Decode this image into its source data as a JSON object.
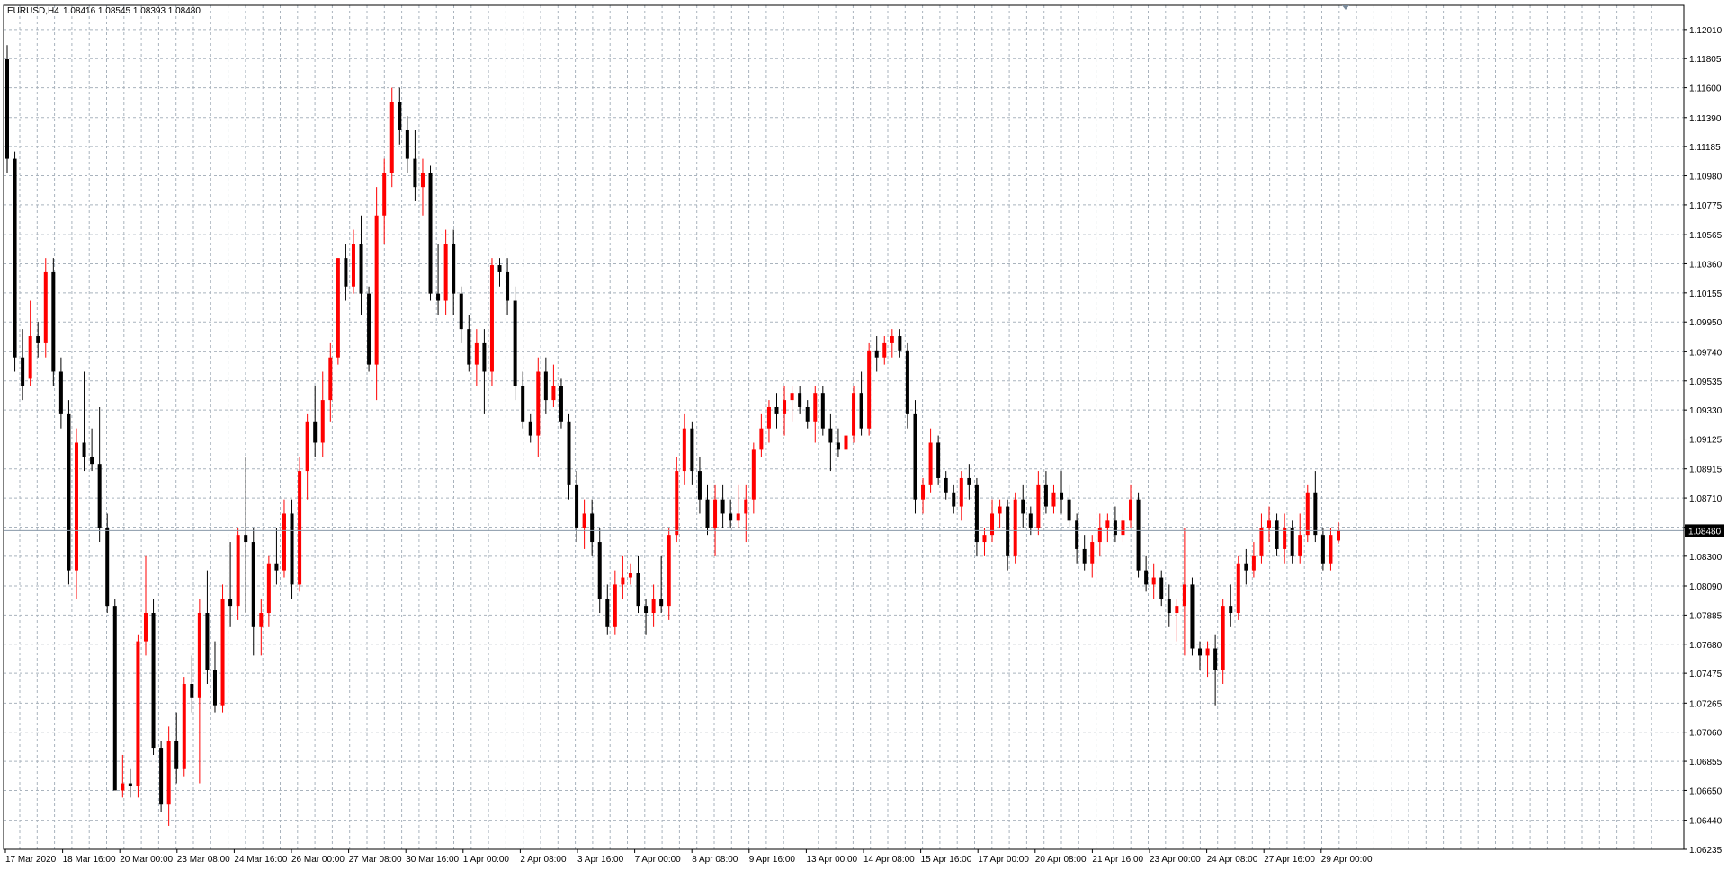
{
  "window": {
    "symbol_info": "EURUSD,H4",
    "ohlc": "1.08416 1.08545 1.08393 1.08480"
  },
  "current_price": {
    "label": "1.08480",
    "value": 1.0848
  },
  "colors": {
    "bull": "#ff0000",
    "bear": "#000000",
    "grid": "#a9b3bd",
    "price_label_bg": "#000000",
    "price_label_fg": "#ffffff",
    "doji": "#00aa00"
  },
  "chart_data": {
    "type": "candlestick",
    "title": "EURUSD,H4",
    "ylim": [
      1.06235,
      1.1218
    ],
    "y_ticks": [
      "1.12010",
      "1.11805",
      "1.11600",
      "1.11390",
      "1.11185",
      "1.10980",
      "1.10775",
      "1.10565",
      "1.10360",
      "1.10155",
      "1.09950",
      "1.09740",
      "1.09535",
      "1.09330",
      "1.09125",
      "1.08915",
      "1.08710",
      "1.08505",
      "1.08300",
      "1.08090",
      "1.07885",
      "1.07680",
      "1.07475",
      "1.07265",
      "1.07060",
      "1.06855",
      "1.06650",
      "1.06440",
      "1.06235"
    ],
    "x_ticks": [
      "17 Mar 2020",
      "18 Mar 16:00",
      "20 Mar 00:00",
      "23 Mar 08:00",
      "24 Mar 16:00",
      "26 Mar 00:00",
      "27 Mar 08:00",
      "30 Mar 16:00",
      "1 Apr 00:00",
      "2 Apr 08:00",
      "3 Apr 16:00",
      "7 Apr 00:00",
      "8 Apr 08:00",
      "9 Apr 16:00",
      "13 Apr 00:00",
      "14 Apr 08:00",
      "15 Apr 16:00",
      "17 Apr 00:00",
      "20 Apr 08:00",
      "21 Apr 16:00",
      "23 Apr 00:00",
      "24 Apr 08:00",
      "27 Apr 16:00",
      "29 Apr 00:00"
    ],
    "grid": true,
    "candles": [
      [
        1.118,
        1.119,
        1.11,
        1.111
      ],
      [
        1.111,
        1.1115,
        1.096,
        1.097
      ],
      [
        1.097,
        1.099,
        1.094,
        1.095
      ],
      [
        1.0955,
        1.101,
        1.095,
        1.0985
      ],
      [
        1.0985,
        1.0995,
        1.097,
        1.098
      ],
      [
        1.098,
        1.104,
        1.097,
        1.103
      ],
      [
        1.103,
        1.104,
        1.095,
        1.096
      ],
      [
        1.096,
        1.097,
        1.092,
        1.093
      ],
      [
        1.093,
        1.094,
        1.081,
        1.082
      ],
      [
        1.082,
        1.092,
        1.08,
        1.091
      ],
      [
        1.091,
        1.096,
        1.089,
        1.09
      ],
      [
        1.09,
        1.092,
        1.089,
        1.0895
      ],
      [
        1.0895,
        1.0935,
        1.084,
        1.085
      ],
      [
        1.085,
        1.086,
        1.079,
        1.0795
      ],
      [
        1.0795,
        1.08,
        1.067,
        1.0665
      ],
      [
        1.0665,
        1.069,
        1.066,
        1.067
      ],
      [
        1.067,
        1.068,
        1.066,
        1.0668
      ],
      [
        1.0668,
        1.0775,
        1.066,
        1.077
      ],
      [
        1.077,
        1.083,
        1.076,
        1.079
      ],
      [
        1.079,
        1.08,
        1.069,
        1.0695
      ],
      [
        1.0695,
        1.07,
        1.065,
        1.0655
      ],
      [
        1.0655,
        1.071,
        1.064,
        1.07
      ],
      [
        1.07,
        1.072,
        1.067,
        1.068
      ],
      [
        1.068,
        1.0745,
        1.0675,
        1.074
      ],
      [
        1.074,
        1.076,
        1.072,
        1.073
      ],
      [
        1.073,
        1.08,
        1.067,
        1.079
      ],
      [
        1.079,
        1.082,
        1.074,
        1.075
      ],
      [
        1.075,
        1.077,
        1.072,
        1.0725
      ],
      [
        1.0725,
        1.081,
        1.072,
        1.08
      ],
      [
        1.08,
        1.084,
        1.078,
        1.0795
      ],
      [
        1.0795,
        1.085,
        1.0785,
        1.0845
      ],
      [
        1.0845,
        1.09,
        1.079,
        1.084
      ],
      [
        1.084,
        1.085,
        1.076,
        1.078
      ],
      [
        1.078,
        1.08,
        1.076,
        1.079
      ],
      [
        1.079,
        1.083,
        1.078,
        1.0825
      ],
      [
        1.0825,
        1.085,
        1.081,
        1.082
      ],
      [
        1.082,
        1.087,
        1.0815,
        1.086
      ],
      [
        1.086,
        1.087,
        1.08,
        1.081
      ],
      [
        1.081,
        1.09,
        1.0805,
        1.089
      ],
      [
        1.089,
        1.093,
        1.087,
        1.0925
      ],
      [
        1.0925,
        1.095,
        1.09,
        1.091
      ],
      [
        1.091,
        1.096,
        1.09,
        1.094
      ],
      [
        1.094,
        1.098,
        1.0925,
        1.097
      ],
      [
        1.097,
        1.104,
        1.0965,
        1.104
      ],
      [
        1.104,
        1.105,
        1.101,
        1.102
      ],
      [
        1.102,
        1.106,
        1.1015,
        1.105
      ],
      [
        1.105,
        1.107,
        1.1,
        1.1015
      ],
      [
        1.1015,
        1.102,
        1.096,
        1.0965
      ],
      [
        1.0965,
        1.109,
        1.094,
        1.107
      ],
      [
        1.107,
        1.111,
        1.105,
        1.11
      ],
      [
        1.11,
        1.116,
        1.109,
        1.115
      ],
      [
        1.115,
        1.116,
        1.112,
        1.113
      ],
      [
        1.113,
        1.114,
        1.11,
        1.111
      ],
      [
        1.111,
        1.113,
        1.108,
        1.109
      ],
      [
        1.109,
        1.111,
        1.107,
        1.11
      ],
      [
        1.11,
        1.1105,
        1.101,
        1.1015
      ],
      [
        1.1015,
        1.105,
        1.1,
        1.101
      ],
      [
        1.101,
        1.106,
        1.1,
        1.105
      ],
      [
        1.105,
        1.106,
        1.1,
        1.1015
      ],
      [
        1.1015,
        1.102,
        1.098,
        1.099
      ],
      [
        1.099,
        1.1,
        1.096,
        1.0965
      ],
      [
        1.0965,
        1.099,
        1.095,
        1.098
      ],
      [
        1.098,
        1.099,
        1.093,
        1.096
      ],
      [
        1.096,
        1.104,
        1.095,
        1.1035
      ],
      [
        1.1035,
        1.104,
        1.102,
        1.103
      ],
      [
        1.103,
        1.104,
        1.1,
        1.101
      ],
      [
        1.101,
        1.102,
        1.094,
        1.095
      ],
      [
        1.095,
        1.096,
        1.092,
        1.0925
      ],
      [
        1.0925,
        1.093,
        1.091,
        1.0915
      ],
      [
        1.0915,
        1.097,
        1.09,
        1.096
      ],
      [
        1.096,
        1.097,
        1.093,
        1.094
      ],
      [
        1.094,
        1.0965,
        1.0935,
        1.095
      ],
      [
        1.095,
        1.0955,
        1.092,
        1.0925
      ],
      [
        1.0925,
        1.093,
        1.087,
        1.088
      ],
      [
        1.088,
        1.089,
        1.084,
        1.085
      ],
      [
        1.085,
        1.087,
        1.0835,
        1.086
      ],
      [
        1.086,
        1.087,
        1.083,
        1.084
      ],
      [
        1.084,
        1.085,
        1.079,
        1.08
      ],
      [
        1.08,
        1.081,
        1.0775,
        1.078
      ],
      [
        1.078,
        1.082,
        1.0775,
        1.081
      ],
      [
        1.081,
        1.083,
        1.08,
        1.0815
      ],
      [
        1.0815,
        1.0825,
        1.081,
        1.0818
      ],
      [
        1.0818,
        1.083,
        1.079,
        1.0795
      ],
      [
        1.0795,
        1.08,
        1.0775,
        1.079
      ],
      [
        1.079,
        1.081,
        1.078,
        1.08
      ],
      [
        1.08,
        1.083,
        1.079,
        1.0795
      ],
      [
        1.0795,
        1.085,
        1.0785,
        1.0845
      ],
      [
        1.0845,
        1.09,
        1.084,
        1.089
      ],
      [
        1.089,
        1.093,
        1.088,
        1.092
      ],
      [
        1.092,
        1.0925,
        1.088,
        1.089
      ],
      [
        1.089,
        1.09,
        1.086,
        1.087
      ],
      [
        1.087,
        1.088,
        1.0845,
        1.085
      ],
      [
        1.085,
        1.088,
        1.083,
        1.087
      ],
      [
        1.087,
        1.088,
        1.085,
        1.086
      ],
      [
        1.086,
        1.087,
        1.085,
        1.0855
      ],
      [
        1.0855,
        1.088,
        1.085,
        1.086
      ],
      [
        1.086,
        1.088,
        1.084,
        1.087
      ],
      [
        1.087,
        1.091,
        1.086,
        1.0905
      ],
      [
        1.0905,
        1.093,
        1.09,
        1.092
      ],
      [
        1.092,
        1.094,
        1.091,
        1.0935
      ],
      [
        1.0935,
        1.0945,
        1.092,
        1.093
      ],
      [
        1.093,
        1.095,
        1.0915,
        1.094
      ],
      [
        1.094,
        1.095,
        1.0925,
        1.0945
      ],
      [
        1.0945,
        1.095,
        1.093,
        1.0935
      ],
      [
        1.0935,
        1.094,
        1.092,
        1.0925
      ],
      [
        1.0925,
        1.095,
        1.091,
        1.0945
      ],
      [
        1.0945,
        1.095,
        1.0915,
        1.092
      ],
      [
        1.092,
        1.093,
        1.089,
        1.091
      ],
      [
        1.091,
        1.092,
        1.09,
        1.0905
      ],
      [
        1.0905,
        1.0925,
        1.09,
        1.0915
      ],
      [
        1.0915,
        1.095,
        1.091,
        1.0945
      ],
      [
        1.0945,
        1.096,
        1.0915,
        1.092
      ],
      [
        1.092,
        1.098,
        1.0915,
        1.0975
      ],
      [
        1.0975,
        1.0985,
        1.096,
        1.097
      ],
      [
        1.097,
        1.0985,
        1.0965,
        1.098
      ],
      [
        1.098,
        1.099,
        1.097,
        1.0985
      ],
      [
        1.0985,
        1.099,
        1.097,
        1.0975
      ],
      [
        1.0975,
        1.098,
        1.092,
        1.093
      ],
      [
        1.093,
        1.094,
        1.086,
        1.087
      ],
      [
        1.087,
        1.0885,
        1.086,
        1.088
      ],
      [
        1.088,
        1.092,
        1.0875,
        1.091
      ],
      [
        1.091,
        1.0915,
        1.088,
        1.0885
      ],
      [
        1.0885,
        1.089,
        1.087,
        1.0875
      ],
      [
        1.0875,
        1.088,
        1.086,
        1.0865
      ],
      [
        1.0865,
        1.089,
        1.0855,
        1.0885
      ],
      [
        1.0885,
        1.0895,
        1.087,
        1.088
      ],
      [
        1.088,
        1.0885,
        1.083,
        1.084
      ],
      [
        1.084,
        1.085,
        1.083,
        1.0845
      ],
      [
        1.0845,
        1.087,
        1.084,
        1.086
      ],
      [
        1.086,
        1.087,
        1.085,
        1.0865
      ],
      [
        1.0865,
        1.087,
        1.082,
        1.083
      ],
      [
        1.083,
        1.0875,
        1.0825,
        1.087
      ],
      [
        1.087,
        1.088,
        1.085,
        1.086
      ],
      [
        1.086,
        1.0865,
        1.0845,
        1.085
      ],
      [
        1.085,
        1.089,
        1.0845,
        1.088
      ],
      [
        1.088,
        1.089,
        1.086,
        1.0865
      ],
      [
        1.0865,
        1.088,
        1.086,
        1.0875
      ],
      [
        1.0875,
        1.089,
        1.086,
        1.087
      ],
      [
        1.087,
        1.088,
        1.085,
        1.0855
      ],
      [
        1.0855,
        1.086,
        1.0825,
        1.0835
      ],
      [
        1.0835,
        1.0845,
        1.082,
        1.0825
      ],
      [
        1.0825,
        1.0845,
        1.0815,
        1.084
      ],
      [
        1.084,
        1.086,
        1.083,
        1.085
      ],
      [
        1.085,
        1.086,
        1.084,
        1.0855
      ],
      [
        1.0855,
        1.0865,
        1.084,
        1.0845
      ],
      [
        1.0845,
        1.086,
        1.084,
        1.0855
      ],
      [
        1.0855,
        1.088,
        1.085,
        1.087
      ],
      [
        1.087,
        1.0875,
        1.0815,
        1.082
      ],
      [
        1.082,
        1.083,
        1.0805,
        1.081
      ],
      [
        1.081,
        1.0825,
        1.08,
        1.0815
      ],
      [
        1.0815,
        1.082,
        1.0795,
        1.08
      ],
      [
        1.08,
        1.081,
        1.078,
        1.079
      ],
      [
        1.079,
        1.08,
        1.077,
        1.0795
      ],
      [
        1.0795,
        1.085,
        1.076,
        1.081
      ],
      [
        1.081,
        1.0815,
        1.076,
        1.0765
      ],
      [
        1.0765,
        1.077,
        1.075,
        1.076
      ],
      [
        1.076,
        1.077,
        1.0745,
        1.0765
      ],
      [
        1.0765,
        1.0775,
        1.0725,
        1.075
      ],
      [
        1.075,
        1.08,
        1.074,
        1.0795
      ],
      [
        1.0795,
        1.081,
        1.078,
        1.079
      ],
      [
        1.079,
        1.083,
        1.0785,
        1.0825
      ],
      [
        1.0825,
        1.0835,
        1.081,
        1.082
      ],
      [
        1.082,
        1.084,
        1.0815,
        1.083
      ],
      [
        1.083,
        1.086,
        1.0825,
        1.085
      ],
      [
        1.085,
        1.0865,
        1.084,
        1.0855
      ],
      [
        1.0855,
        1.086,
        1.083,
        1.0835
      ],
      [
        1.0835,
        1.086,
        1.0825,
        1.085
      ],
      [
        1.085,
        1.0855,
        1.0825,
        1.083
      ],
      [
        1.083,
        1.086,
        1.0825,
        1.0845
      ],
      [
        1.0845,
        1.088,
        1.084,
        1.0875
      ],
      [
        1.0875,
        1.089,
        1.084,
        1.0845
      ],
      [
        1.0845,
        1.085,
        1.082,
        1.0825
      ],
      [
        1.0825,
        1.085,
        1.082,
        1.0845
      ],
      [
        1.0841,
        1.0854,
        1.0839,
        1.0848
      ]
    ]
  }
}
